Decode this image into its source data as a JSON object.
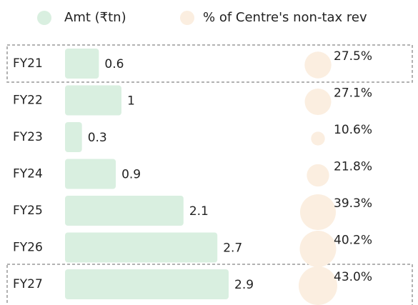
{
  "chart_data": {
    "type": "bar",
    "categories": [
      "FY21",
      "FY22",
      "FY23",
      "FY24",
      "FY25",
      "FY26",
      "FY27"
    ],
    "series": [
      {
        "name": "Amt (₹tn)",
        "color": "#d9efe0",
        "values": [
          0.6,
          1,
          0.3,
          0.9,
          2.1,
          2.7,
          2.9
        ]
      },
      {
        "name": "% of Centre's non-tax rev",
        "color": "#fbeee0",
        "values": [
          27.5,
          27.1,
          10.6,
          21.8,
          39.3,
          40.2,
          43.0
        ],
        "value_labels": [
          "27.5%",
          "27.1%",
          "10.6%",
          "21.8%",
          "39.3%",
          "40.2%",
          "43.0%"
        ]
      }
    ]
  }
}
